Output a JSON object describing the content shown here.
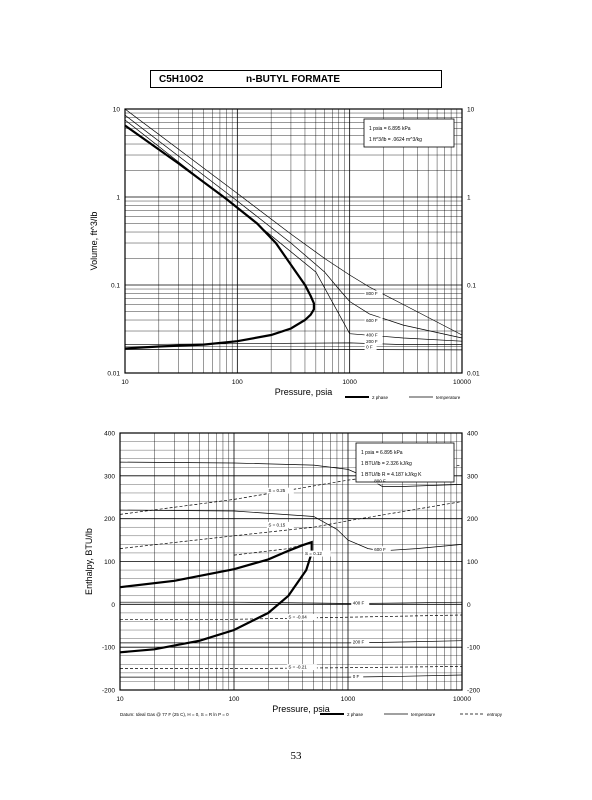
{
  "title": {
    "formula": "C5H10O2",
    "name": "n-BUTYL FORMATE"
  },
  "page_number": "53",
  "chart_data": [
    {
      "type": "line",
      "xscale": "log",
      "yscale": "log",
      "xlim": [
        10,
        10000
      ],
      "ylim": [
        0.01,
        10
      ],
      "xlabel": "Pressure,  psia",
      "ylabel": "Volume, ft^3/lb",
      "xticks": [
        "10",
        "100",
        "1000",
        "10000"
      ],
      "yticks": [
        "0.01",
        "0.1",
        "1",
        "10"
      ],
      "conversion_box": [
        "1 psia  =  6.895 kPa",
        "1 ft^3/lb  =  .0624 m^3/kg"
      ],
      "legend": [
        "2 phase",
        "temperature"
      ],
      "series": [
        {
          "name": "2 phase",
          "style": "thick",
          "x": [
            10,
            30,
            80,
            150,
            220,
            300,
            400,
            450,
            480,
            480,
            450,
            400,
            300,
            200,
            100,
            50,
            20,
            10
          ],
          "y": [
            6.5,
            2.4,
            0.95,
            0.5,
            0.3,
            0.17,
            0.1,
            0.075,
            0.062,
            0.053,
            0.046,
            0.04,
            0.032,
            0.027,
            0.023,
            0.021,
            0.02,
            0.019
          ]
        },
        {
          "name": "800 F",
          "style": "thin",
          "x": [
            10,
            100,
            300,
            600,
            1000,
            1500,
            3000,
            10000
          ],
          "y": [
            10,
            1.1,
            0.38,
            0.2,
            0.13,
            0.095,
            0.06,
            0.027
          ]
        },
        {
          "name": "600 F",
          "style": "thin",
          "x": [
            10,
            100,
            300,
            600,
            800,
            1000,
            1500,
            3000,
            10000
          ],
          "y": [
            8.5,
            0.9,
            0.3,
            0.14,
            0.09,
            0.065,
            0.047,
            0.035,
            0.025
          ]
        },
        {
          "name": "400 F",
          "style": "thin",
          "x": [
            10,
            100,
            500,
            1000,
            3000,
            10000
          ],
          "y": [
            7.5,
            0.75,
            0.14,
            0.028,
            0.025,
            0.023
          ]
        },
        {
          "name": "200 F",
          "style": "thin",
          "x": [
            10,
            100,
            1000,
            3000,
            10000
          ],
          "y": [
            0.021,
            0.0215,
            0.022,
            0.021,
            0.021
          ]
        },
        {
          "name": "0 F",
          "style": "thin",
          "x": [
            10,
            100,
            1000,
            10000
          ],
          "y": [
            0.0185,
            0.0185,
            0.0185,
            0.0183
          ]
        }
      ],
      "curve_labels": [
        {
          "text": "800 F",
          "x": 1400,
          "y": 0.077
        },
        {
          "text": "600 F",
          "x": 1400,
          "y": 0.038
        },
        {
          "text": "400 F",
          "x": 1400,
          "y": 0.026
        },
        {
          "text": "200 F",
          "x": 1400,
          "y": 0.022
        },
        {
          "text": "0 F",
          "x": 1400,
          "y": 0.019
        }
      ]
    },
    {
      "type": "line",
      "xscale": "log",
      "yscale": "linear",
      "xlim": [
        10,
        10000
      ],
      "ylim": [
        -200,
        400
      ],
      "xlabel": "Pressure,  psia",
      "ylabel": "Enthalpy, BTU/lb",
      "xticks": [
        "10",
        "100",
        "1000",
        "10000"
      ],
      "yticks": [
        "-200",
        "-100",
        "0",
        "100",
        "200",
        "300",
        "400"
      ],
      "conversion_box": [
        "1 psia  =  6.895 kPa",
        "1 BTU/lb  =  2.326 kJ/kg",
        "1 BTU/lb R  =  4.187 kJ/kg K"
      ],
      "footer_note": "Datum: Ideal Gas @ 77 F (25 C),  H = 0,  S = R ln P = 0",
      "legend": [
        "2 phase",
        "temperature",
        "entropy"
      ],
      "series": [
        {
          "name": "2 phase",
          "style": "thick",
          "x": [
            10,
            30,
            100,
            200,
            300,
            400,
            480,
            480,
            430,
            300,
            200,
            100,
            50,
            20,
            10
          ],
          "y": [
            40,
            55,
            82,
            105,
            125,
            138,
            145,
            120,
            80,
            20,
            -20,
            -60,
            -85,
            -105,
            -112
          ]
        },
        {
          "name": "800 F",
          "style": "thin",
          "x": [
            10,
            100,
            500,
            1000,
            1500,
            2000,
            3000,
            10000
          ],
          "y": [
            332,
            330,
            325,
            315,
            295,
            275,
            275,
            280
          ]
        },
        {
          "name": "600 F",
          "style": "thin",
          "x": [
            10,
            100,
            500,
            800,
            1000,
            1500,
            2000,
            4000,
            10000
          ],
          "y": [
            220,
            218,
            205,
            175,
            150,
            130,
            125,
            130,
            140
          ]
        },
        {
          "name": "400 F",
          "style": "thin",
          "x": [
            10,
            100,
            500,
            1000,
            3000,
            10000
          ],
          "y": [
            5,
            5,
            3,
            2,
            3,
            5
          ]
        },
        {
          "name": "200 F",
          "style": "thin",
          "x": [
            10,
            100,
            1000,
            3000,
            10000
          ],
          "y": [
            -90,
            -90,
            -90,
            -88,
            -85
          ]
        },
        {
          "name": "0 F",
          "style": "thin",
          "x": [
            10,
            100,
            1000,
            3000,
            10000
          ],
          "y": [
            -170,
            -170,
            -170,
            -168,
            -165
          ]
        },
        {
          "name": "S=0.25",
          "style": "dashed",
          "x": [
            10,
            100,
            1000,
            10000
          ],
          "y": [
            210,
            245,
            290,
            325
          ]
        },
        {
          "name": "S=0.15",
          "style": "dashed",
          "x": [
            10,
            100,
            500,
            1000,
            10000
          ],
          "y": [
            130,
            160,
            180,
            195,
            240
          ]
        },
        {
          "name": "S=0.12",
          "style": "dashed",
          "x": [
            100,
            300,
            480
          ],
          "y": [
            115,
            130,
            145
          ]
        },
        {
          "name": "S=-0.04",
          "style": "dashed",
          "x": [
            10,
            100,
            1000,
            10000
          ],
          "y": [
            -35,
            -35,
            -30,
            -25
          ]
        },
        {
          "name": "S=-0.21",
          "style": "dashed",
          "x": [
            10,
            100,
            1000,
            10000
          ],
          "y": [
            -150,
            -150,
            -148,
            -145
          ]
        }
      ],
      "curve_labels": [
        {
          "text": "800 F",
          "x": 1700,
          "y": 285
        },
        {
          "text": "600 F",
          "x": 1700,
          "y": 125
        },
        {
          "text": "400 F",
          "x": 1100,
          "y": 0
        },
        {
          "text": "200 F",
          "x": 1100,
          "y": -92
        },
        {
          "text": "0 F",
          "x": 1100,
          "y": -172
        },
        {
          "text": "S = 0.25",
          "x": 200,
          "y": 262
        },
        {
          "text": "S = 0.15",
          "x": 200,
          "y": 182
        },
        {
          "text": "S = 0.12",
          "x": 420,
          "y": 115
        },
        {
          "text": "S = -0.04",
          "x": 300,
          "y": -33
        },
        {
          "text": "S = -0.21",
          "x": 300,
          "y": -150
        }
      ]
    }
  ]
}
